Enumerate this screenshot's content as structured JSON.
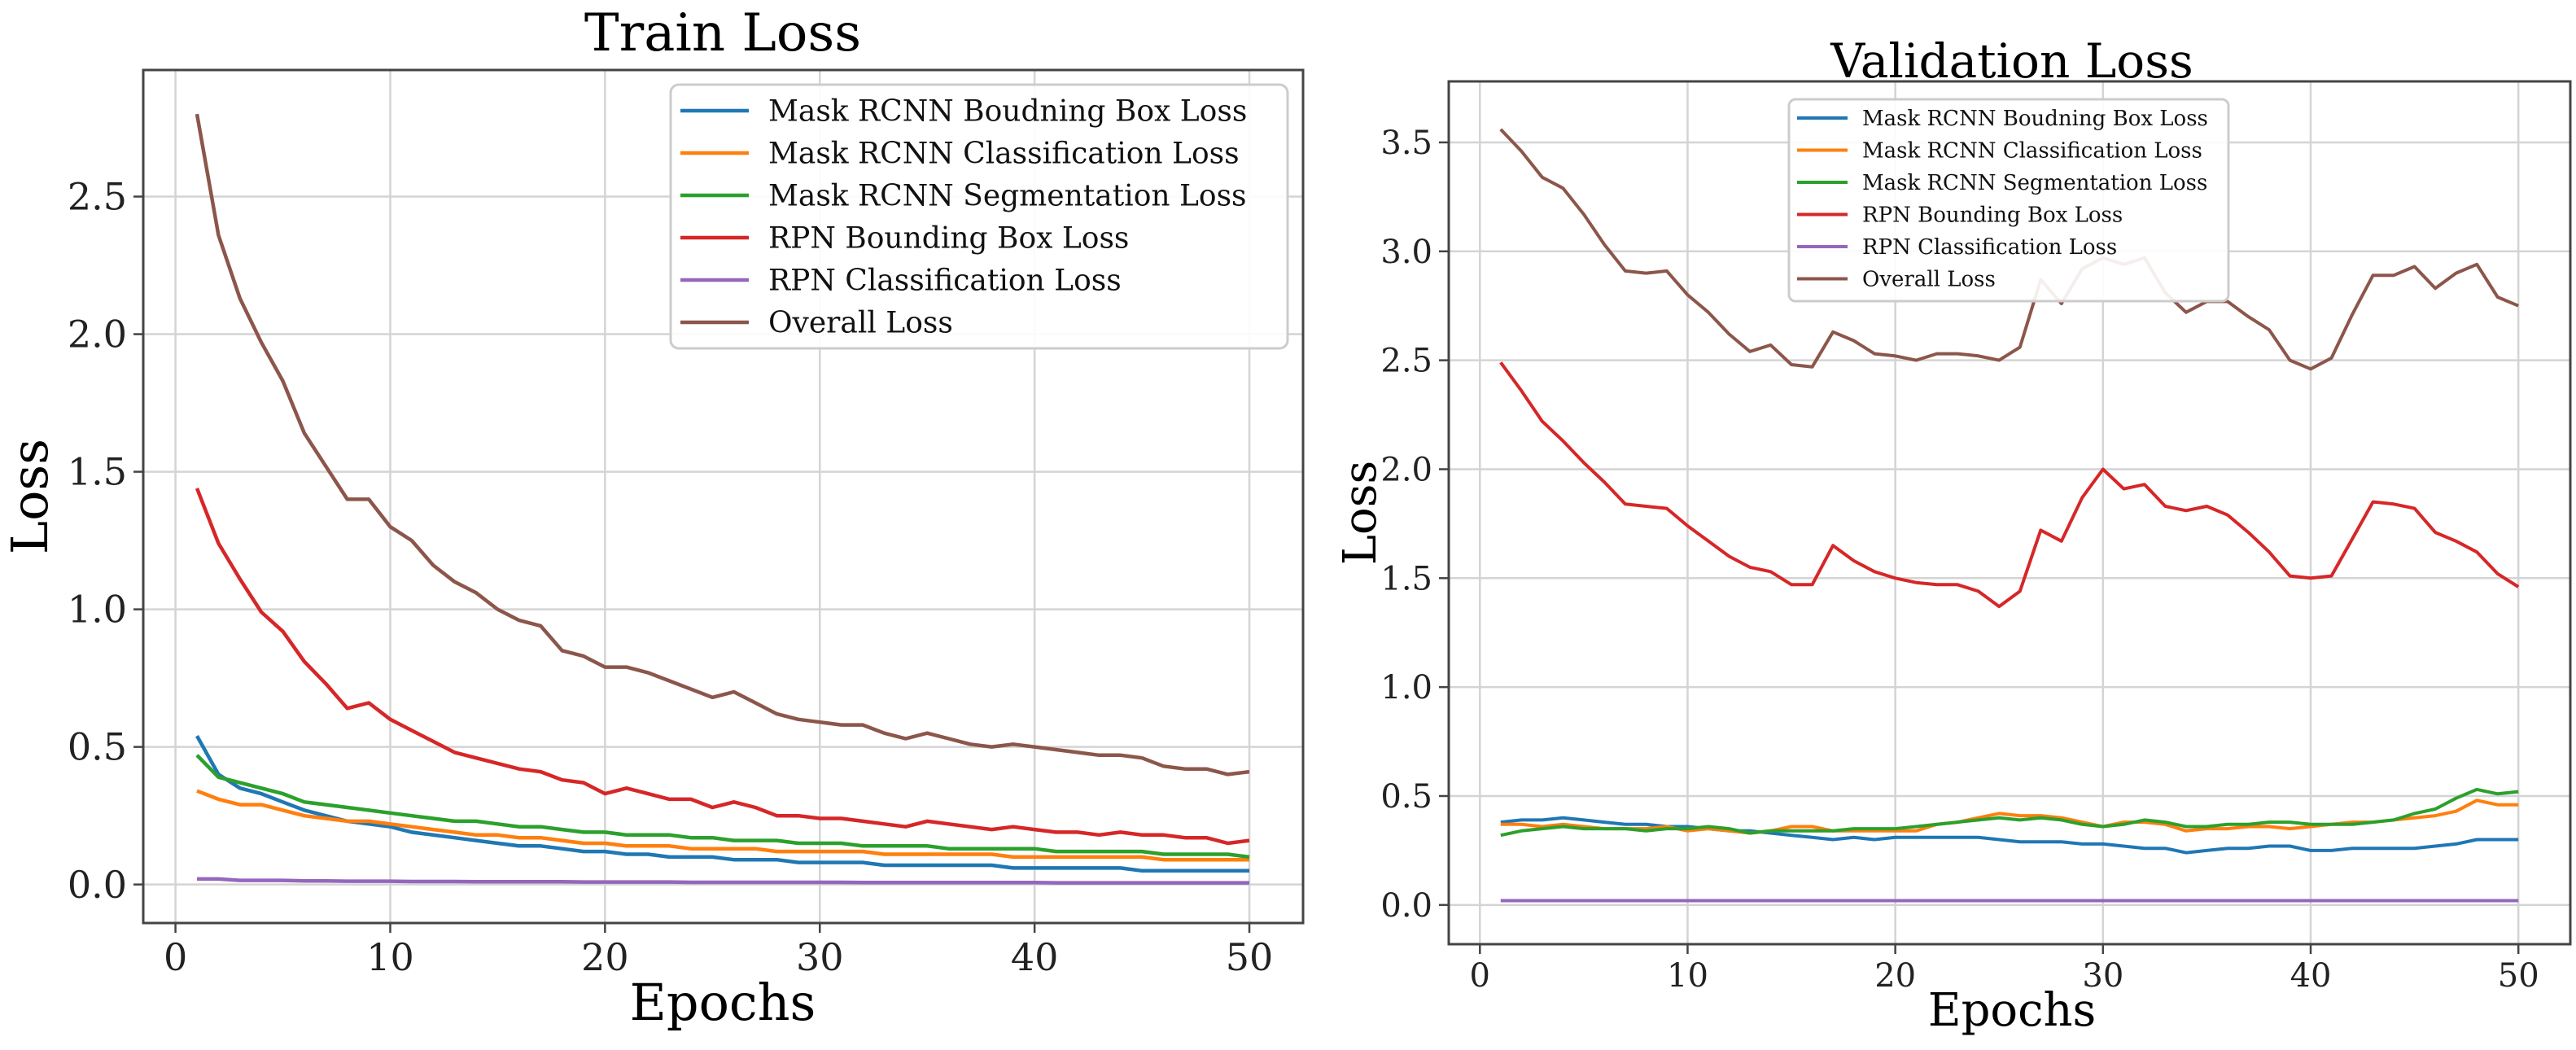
{
  "chart_data": [
    {
      "type": "line",
      "title": "Train Loss",
      "xlabel": "Epochs",
      "ylabel": "Loss",
      "xlim": [
        -1.5,
        52.5
      ],
      "ylim": [
        -0.14,
        2.96
      ],
      "xticks": [
        0,
        10,
        20,
        30,
        40,
        50
      ],
      "yticks": [
        0.0,
        0.5,
        1.0,
        1.5,
        2.0,
        2.5
      ],
      "grid": true,
      "legend_position": "top-right",
      "x": [
        1,
        2,
        3,
        4,
        5,
        6,
        7,
        8,
        9,
        10,
        11,
        12,
        13,
        14,
        15,
        16,
        17,
        18,
        19,
        20,
        21,
        22,
        23,
        24,
        25,
        26,
        27,
        28,
        29,
        30,
        31,
        32,
        33,
        34,
        35,
        36,
        37,
        38,
        39,
        40,
        41,
        42,
        43,
        44,
        45,
        46,
        47,
        48,
        49,
        50
      ],
      "series": [
        {
          "name": "Mask RCNN Boudning Box Loss",
          "color": "#1f77b4",
          "values": [
            0.54,
            0.4,
            0.35,
            0.33,
            0.3,
            0.27,
            0.25,
            0.23,
            0.22,
            0.21,
            0.19,
            0.18,
            0.17,
            0.16,
            0.15,
            0.14,
            0.14,
            0.13,
            0.12,
            0.12,
            0.11,
            0.11,
            0.1,
            0.1,
            0.1,
            0.09,
            0.09,
            0.09,
            0.08,
            0.08,
            0.08,
            0.08,
            0.07,
            0.07,
            0.07,
            0.07,
            0.07,
            0.07,
            0.06,
            0.06,
            0.06,
            0.06,
            0.06,
            0.06,
            0.05,
            0.05,
            0.05,
            0.05,
            0.05,
            0.05
          ]
        },
        {
          "name": "Mask RCNN Classification Loss",
          "color": "#ff7f0e",
          "values": [
            0.34,
            0.31,
            0.29,
            0.29,
            0.27,
            0.25,
            0.24,
            0.23,
            0.23,
            0.22,
            0.21,
            0.2,
            0.19,
            0.18,
            0.18,
            0.17,
            0.17,
            0.16,
            0.15,
            0.15,
            0.14,
            0.14,
            0.14,
            0.13,
            0.13,
            0.13,
            0.13,
            0.12,
            0.12,
            0.12,
            0.12,
            0.12,
            0.11,
            0.11,
            0.11,
            0.11,
            0.11,
            0.11,
            0.1,
            0.1,
            0.1,
            0.1,
            0.1,
            0.1,
            0.1,
            0.09,
            0.09,
            0.09,
            0.09,
            0.09
          ]
        },
        {
          "name": "Mask RCNN Segmentation Loss",
          "color": "#2ca02c",
          "values": [
            0.47,
            0.39,
            0.37,
            0.35,
            0.33,
            0.3,
            0.29,
            0.28,
            0.27,
            0.26,
            0.25,
            0.24,
            0.23,
            0.23,
            0.22,
            0.21,
            0.21,
            0.2,
            0.19,
            0.19,
            0.18,
            0.18,
            0.18,
            0.17,
            0.17,
            0.16,
            0.16,
            0.16,
            0.15,
            0.15,
            0.15,
            0.14,
            0.14,
            0.14,
            0.14,
            0.13,
            0.13,
            0.13,
            0.13,
            0.13,
            0.12,
            0.12,
            0.12,
            0.12,
            0.12,
            0.11,
            0.11,
            0.11,
            0.11,
            0.1
          ]
        },
        {
          "name": "RPN Bounding Box Loss",
          "color": "#d62728",
          "values": [
            1.44,
            1.24,
            1.11,
            0.99,
            0.92,
            0.81,
            0.73,
            0.64,
            0.66,
            0.6,
            0.56,
            0.52,
            0.48,
            0.46,
            0.44,
            0.42,
            0.41,
            0.38,
            0.37,
            0.33,
            0.35,
            0.33,
            0.31,
            0.31,
            0.28,
            0.3,
            0.28,
            0.25,
            0.25,
            0.24,
            0.24,
            0.23,
            0.22,
            0.21,
            0.23,
            0.22,
            0.21,
            0.2,
            0.21,
            0.2,
            0.19,
            0.19,
            0.18,
            0.19,
            0.18,
            0.18,
            0.17,
            0.17,
            0.15,
            0.16
          ]
        },
        {
          "name": "RPN Classification Loss",
          "color": "#9467bd",
          "values": [
            0.02,
            0.02,
            0.015,
            0.015,
            0.015,
            0.013,
            0.013,
            0.012,
            0.012,
            0.012,
            0.011,
            0.011,
            0.011,
            0.01,
            0.01,
            0.01,
            0.01,
            0.01,
            0.009,
            0.009,
            0.009,
            0.009,
            0.009,
            0.008,
            0.008,
            0.008,
            0.008,
            0.008,
            0.008,
            0.008,
            0.008,
            0.007,
            0.007,
            0.007,
            0.007,
            0.007,
            0.007,
            0.007,
            0.007,
            0.007,
            0.006,
            0.006,
            0.006,
            0.006,
            0.006,
            0.006,
            0.006,
            0.006,
            0.006,
            0.006
          ]
        },
        {
          "name": "Overall Loss",
          "color": "#8c564b",
          "values": [
            2.8,
            2.36,
            2.13,
            1.97,
            1.83,
            1.64,
            1.52,
            1.4,
            1.4,
            1.3,
            1.25,
            1.16,
            1.1,
            1.06,
            1.0,
            0.96,
            0.94,
            0.85,
            0.83,
            0.79,
            0.79,
            0.77,
            0.74,
            0.71,
            0.68,
            0.7,
            0.66,
            0.62,
            0.6,
            0.59,
            0.58,
            0.58,
            0.55,
            0.53,
            0.55,
            0.53,
            0.51,
            0.5,
            0.51,
            0.5,
            0.49,
            0.48,
            0.47,
            0.47,
            0.46,
            0.43,
            0.42,
            0.42,
            0.4,
            0.41
          ]
        }
      ]
    },
    {
      "type": "line",
      "title": "Validation Loss",
      "xlabel": "Epochs",
      "ylabel": "Loss",
      "xlim": [
        -1.5,
        52.5
      ],
      "ylim": [
        -0.18,
        3.78
      ],
      "xticks": [
        0,
        10,
        20,
        30,
        40,
        50
      ],
      "yticks": [
        0.0,
        0.5,
        1.0,
        1.5,
        2.0,
        2.5,
        3.0,
        3.5
      ],
      "grid": true,
      "legend_position": "top-center",
      "x": [
        1,
        2,
        3,
        4,
        5,
        6,
        7,
        8,
        9,
        10,
        11,
        12,
        13,
        14,
        15,
        16,
        17,
        18,
        19,
        20,
        21,
        22,
        23,
        24,
        25,
        26,
        27,
        28,
        29,
        30,
        31,
        32,
        33,
        34,
        35,
        36,
        37,
        38,
        39,
        40,
        41,
        42,
        43,
        44,
        45,
        46,
        47,
        48,
        49,
        50
      ],
      "series": [
        {
          "name": "Mask RCNN Boudning Box Loss",
          "color": "#1f77b4",
          "values": [
            0.38,
            0.39,
            0.39,
            0.4,
            0.39,
            0.38,
            0.37,
            0.37,
            0.36,
            0.36,
            0.35,
            0.34,
            0.34,
            0.33,
            0.32,
            0.31,
            0.3,
            0.31,
            0.3,
            0.31,
            0.31,
            0.31,
            0.31,
            0.31,
            0.3,
            0.29,
            0.29,
            0.29,
            0.28,
            0.28,
            0.27,
            0.26,
            0.26,
            0.24,
            0.25,
            0.26,
            0.26,
            0.27,
            0.27,
            0.25,
            0.25,
            0.26,
            0.26,
            0.26,
            0.26,
            0.27,
            0.28,
            0.3,
            0.3,
            0.3
          ]
        },
        {
          "name": "Mask RCNN Classification Loss",
          "color": "#ff7f0e",
          "values": [
            0.37,
            0.37,
            0.36,
            0.37,
            0.36,
            0.35,
            0.35,
            0.35,
            0.36,
            0.34,
            0.35,
            0.34,
            0.33,
            0.34,
            0.36,
            0.36,
            0.34,
            0.34,
            0.34,
            0.34,
            0.34,
            0.37,
            0.38,
            0.4,
            0.42,
            0.41,
            0.41,
            0.4,
            0.38,
            0.36,
            0.38,
            0.38,
            0.37,
            0.34,
            0.35,
            0.35,
            0.36,
            0.36,
            0.35,
            0.36,
            0.37,
            0.38,
            0.38,
            0.39,
            0.4,
            0.41,
            0.43,
            0.48,
            0.46,
            0.46
          ]
        },
        {
          "name": "Mask RCNN Segmentation Loss",
          "color": "#2ca02c",
          "values": [
            0.32,
            0.34,
            0.35,
            0.36,
            0.35,
            0.35,
            0.35,
            0.34,
            0.35,
            0.35,
            0.36,
            0.35,
            0.33,
            0.34,
            0.34,
            0.34,
            0.34,
            0.35,
            0.35,
            0.35,
            0.36,
            0.37,
            0.38,
            0.39,
            0.4,
            0.39,
            0.4,
            0.39,
            0.37,
            0.36,
            0.37,
            0.39,
            0.38,
            0.36,
            0.36,
            0.37,
            0.37,
            0.38,
            0.38,
            0.37,
            0.37,
            0.37,
            0.38,
            0.39,
            0.42,
            0.44,
            0.49,
            0.53,
            0.51,
            0.52
          ]
        },
        {
          "name": "RPN Bounding Box Loss",
          "color": "#d62728",
          "values": [
            2.49,
            2.36,
            2.22,
            2.13,
            2.03,
            1.94,
            1.84,
            1.83,
            1.82,
            1.74,
            1.67,
            1.6,
            1.55,
            1.53,
            1.47,
            1.47,
            1.65,
            1.58,
            1.53,
            1.5,
            1.48,
            1.47,
            1.47,
            1.44,
            1.37,
            1.44,
            1.72,
            1.67,
            1.87,
            2.0,
            1.91,
            1.93,
            1.83,
            1.81,
            1.83,
            1.79,
            1.71,
            1.62,
            1.51,
            1.5,
            1.51,
            1.68,
            1.85,
            1.84,
            1.82,
            1.71,
            1.67,
            1.62,
            1.52,
            1.46
          ]
        },
        {
          "name": "RPN Classification Loss",
          "color": "#9467bd",
          "values": [
            0.02,
            0.02,
            0.02,
            0.02,
            0.02,
            0.02,
            0.02,
            0.02,
            0.02,
            0.02,
            0.02,
            0.02,
            0.02,
            0.02,
            0.02,
            0.02,
            0.02,
            0.02,
            0.02,
            0.02,
            0.02,
            0.02,
            0.02,
            0.02,
            0.02,
            0.02,
            0.02,
            0.02,
            0.02,
            0.02,
            0.02,
            0.02,
            0.02,
            0.02,
            0.02,
            0.02,
            0.02,
            0.02,
            0.02,
            0.02,
            0.02,
            0.02,
            0.02,
            0.02,
            0.02,
            0.02,
            0.02,
            0.02,
            0.02,
            0.02
          ]
        },
        {
          "name": "Overall Loss",
          "color": "#8c564b",
          "values": [
            3.56,
            3.46,
            3.34,
            3.29,
            3.17,
            3.03,
            2.91,
            2.9,
            2.91,
            2.8,
            2.72,
            2.62,
            2.54,
            2.57,
            2.48,
            2.47,
            2.63,
            2.59,
            2.53,
            2.52,
            2.5,
            2.53,
            2.53,
            2.52,
            2.5,
            2.56,
            2.87,
            2.76,
            2.92,
            2.97,
            2.94,
            2.97,
            2.81,
            2.72,
            2.77,
            2.77,
            2.7,
            2.64,
            2.5,
            2.46,
            2.51,
            2.71,
            2.89,
            2.89,
            2.93,
            2.83,
            2.9,
            2.94,
            2.79,
            2.75
          ]
        }
      ]
    }
  ]
}
